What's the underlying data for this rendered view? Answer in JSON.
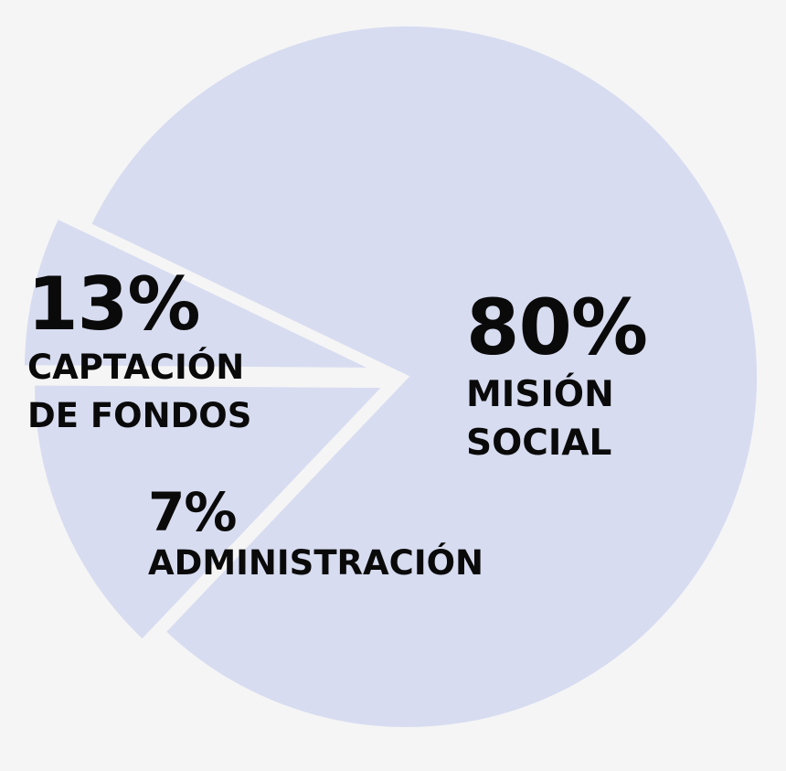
{
  "chart_data": {
    "type": "pie",
    "categories": [
      "MISIÓN SOCIAL",
      "CAPTACIÓN DE FONDOS",
      "ADMINISTRACIÓN"
    ],
    "values": [
      80,
      13,
      7
    ],
    "value_labels": [
      "80%",
      "13%",
      "7%"
    ],
    "label_lines": [
      [
        "MISIÓN",
        "SOCIAL"
      ],
      [
        "CAPTACIÓN",
        "DE FONDOS"
      ],
      [
        "ADMINISTRACIÓN"
      ]
    ],
    "title": "",
    "legend": "none",
    "colors": {
      "slice": "#d7dcf0",
      "background": "#f5f5f6",
      "text": "#0a0a0a"
    }
  }
}
